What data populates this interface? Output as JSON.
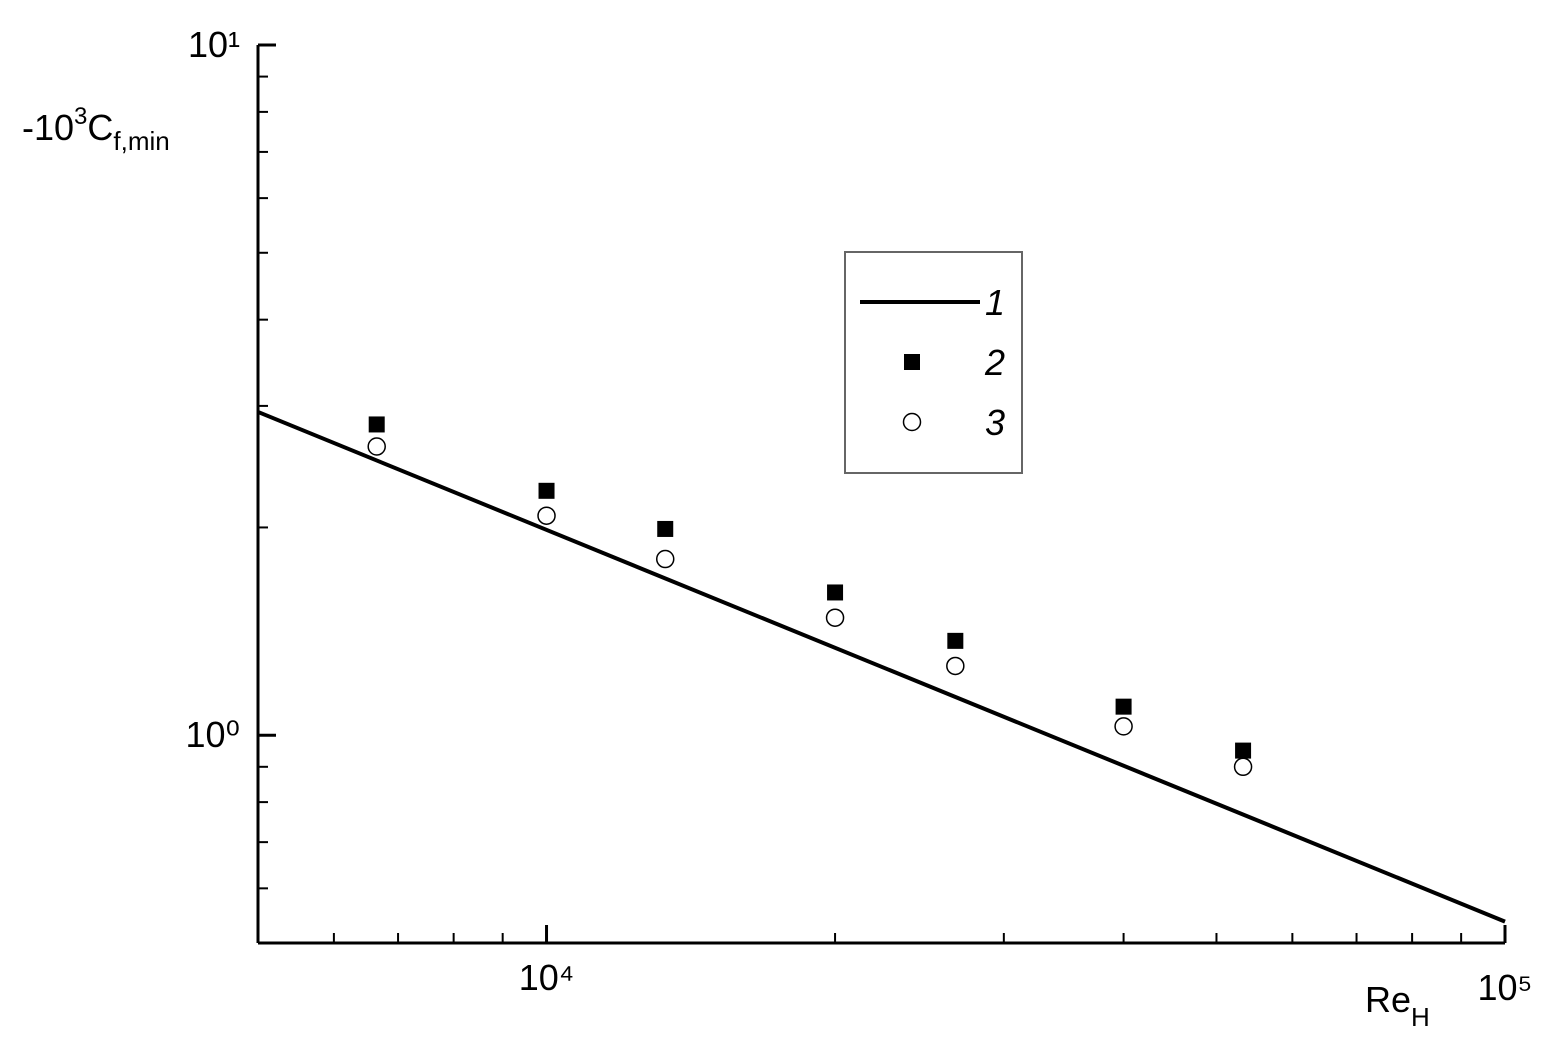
{
  "chart_data": {
    "type": "scatter",
    "xlabel": {
      "text": "Re",
      "sub": "H"
    },
    "ylabel": {
      "text": "-10",
      "sup": "3",
      "text2": "C",
      "sub": "f,min"
    },
    "xscale": "log",
    "yscale": "log",
    "xlim": [
      5000,
      100000
    ],
    "ylim": [
      0.5,
      10
    ],
    "xticks": [
      {
        "value": 10000,
        "label": "10⁴"
      },
      {
        "value": 100000,
        "label": "10⁵"
      }
    ],
    "xminor_ticks": [
      6000,
      7000,
      8000,
      9000,
      20000,
      30000,
      40000,
      50000,
      60000,
      70000,
      80000,
      90000
    ],
    "yticks": [
      {
        "value": 1,
        "label": "10⁰"
      },
      {
        "value": 10,
        "label": "10¹"
      }
    ],
    "yminor_ticks": [
      0.6,
      0.7,
      0.8,
      0.9,
      2,
      3,
      4,
      5,
      6,
      7,
      8,
      9
    ],
    "series": [
      {
        "name": "1",
        "color": "#000000",
        "marker": "line",
        "x": [
          5000,
          100000
        ],
        "values": [
          2.94,
          0.537
        ]
      },
      {
        "name": "2",
        "color": "#000000",
        "marker": "square",
        "x": [
          6650,
          10000,
          13300,
          20000,
          26700,
          40000,
          53300
        ],
        "values": [
          2.82,
          2.26,
          1.99,
          1.61,
          1.37,
          1.1,
          0.95
        ]
      },
      {
        "name": "3",
        "color": "#000000",
        "marker": "circle",
        "x": [
          6650,
          10000,
          13300,
          20000,
          26700,
          40000,
          53300
        ],
        "values": [
          2.62,
          2.08,
          1.8,
          1.48,
          1.26,
          1.03,
          0.9
        ]
      }
    ]
  }
}
